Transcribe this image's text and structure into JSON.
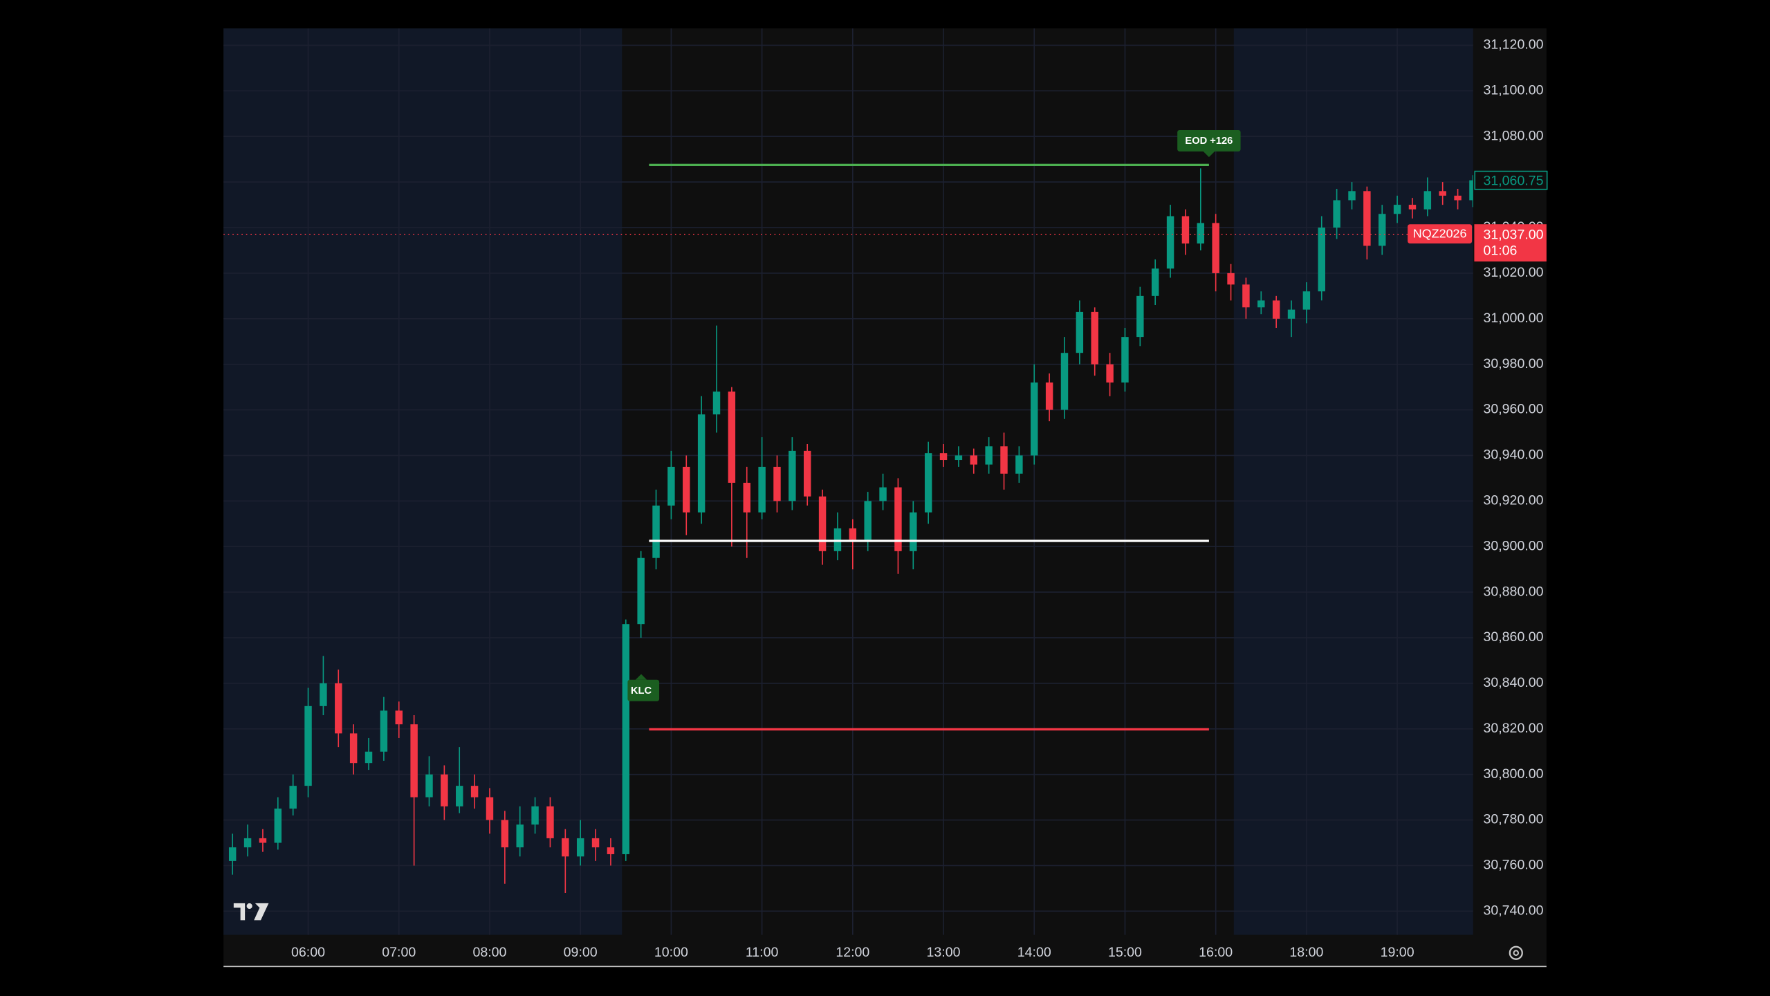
{
  "chart_data": {
    "type": "candlestick",
    "x": [
      "05:10",
      "05:20",
      "05:30",
      "05:40",
      "05:50",
      "06:00",
      "06:10",
      "06:20",
      "06:30",
      "06:40",
      "06:50",
      "07:00",
      "07:10",
      "07:20",
      "07:30",
      "07:40",
      "07:50",
      "08:00",
      "08:10",
      "08:20",
      "08:30",
      "08:40",
      "08:50",
      "09:00",
      "09:10",
      "09:20",
      "09:30",
      "09:40",
      "09:50",
      "10:00",
      "10:10",
      "10:20",
      "10:30",
      "10:40",
      "10:50",
      "11:00",
      "11:10",
      "11:20",
      "11:30",
      "11:40",
      "11:50",
      "12:00",
      "12:10",
      "12:20",
      "12:30",
      "12:40",
      "12:50",
      "13:00",
      "13:10",
      "13:20",
      "13:30",
      "13:40",
      "13:50",
      "14:00",
      "14:10",
      "14:20",
      "14:30",
      "14:40",
      "14:50",
      "15:00",
      "15:10",
      "15:20",
      "15:30",
      "15:40",
      "15:50",
      "16:00",
      "16:10",
      "16:20",
      "16:30",
      "16:40",
      "16:50",
      "18:00",
      "18:10",
      "18:20",
      "18:30",
      "18:40",
      "18:50",
      "19:00",
      "19:10",
      "19:20",
      "19:30",
      "19:40",
      "19:50"
    ],
    "open": [
      30762,
      30768,
      30772,
      30770,
      30785,
      30795,
      30830,
      30840,
      30818,
      30805,
      30810,
      30828,
      30822,
      30790,
      30800,
      30786,
      30795,
      30790,
      30780,
      30768,
      30778,
      30786,
      30772,
      30764,
      30772,
      30768,
      30765,
      30866,
      30895,
      30918,
      30935,
      30915,
      30958,
      30968,
      30928,
      30915,
      30935,
      30920,
      30942,
      30922,
      30898,
      30908,
      30903,
      30920,
      30926,
      30898,
      30915,
      30941,
      30938,
      30940,
      30936,
      30944,
      30932,
      30940,
      30972,
      30960,
      30985,
      31003,
      30980,
      30972,
      30992,
      31010,
      31022,
      31045,
      31033,
      31042,
      31020,
      31015,
      31005,
      31008,
      31000,
      31004,
      31012,
      31040,
      31052,
      31056,
      31032,
      31046,
      31050,
      31048,
      31056,
      31054,
      31052
    ],
    "high": [
      30774,
      30778,
      30776,
      30790,
      30800,
      30838,
      30852,
      30846,
      30822,
      30816,
      30834,
      30832,
      30826,
      30808,
      30804,
      30812,
      30800,
      30794,
      30784,
      30786,
      30790,
      30790,
      30776,
      30780,
      30776,
      30772,
      30868,
      30898,
      30925,
      30942,
      30940,
      30966,
      30997,
      30970,
      30935,
      30948,
      30940,
      30948,
      30945,
      30925,
      30915,
      30912,
      30924,
      30932,
      30930,
      30920,
      30946,
      30945,
      30944,
      30943,
      30948,
      30950,
      30944,
      30980,
      30976,
      30992,
      31008,
      31005,
      30985,
      30996,
      31014,
      31026,
      31050,
      31048,
      31066,
      31046,
      31024,
      31018,
      31012,
      31010,
      31008,
      31016,
      31045,
      31057,
      31060,
      31058,
      31050,
      31054,
      31053,
      31062,
      31060,
      31057,
      31063
    ],
    "low": [
      30756,
      30764,
      30766,
      30767,
      30782,
      30790,
      30826,
      30812,
      30800,
      30802,
      30806,
      30816,
      30760,
      30786,
      30780,
      30783,
      30785,
      30774,
      30752,
      30764,
      30774,
      30768,
      30748,
      30760,
      30762,
      30760,
      30762,
      30860,
      30890,
      30912,
      30905,
      30910,
      30950,
      30900,
      30895,
      30912,
      30915,
      30916,
      30918,
      30892,
      30894,
      30890,
      30898,
      30916,
      30888,
      30890,
      30910,
      30935,
      30935,
      30932,
      30932,
      30925,
      30928,
      30936,
      30955,
      30956,
      30980,
      30975,
      30966,
      30968,
      30988,
      31006,
      31018,
      31028,
      31030,
      31012,
      31008,
      31000,
      31002,
      30996,
      30992,
      30998,
      31008,
      31035,
      31048,
      31026,
      31028,
      31042,
      31044,
      31045,
      31050,
      31048,
      31049
    ],
    "close": [
      30768,
      30772,
      30770,
      30785,
      30795,
      30830,
      30840,
      30818,
      30805,
      30810,
      30828,
      30822,
      30790,
      30800,
      30786,
      30795,
      30790,
      30780,
      30768,
      30778,
      30786,
      30772,
      30764,
      30772,
      30768,
      30765,
      30866,
      30895,
      30918,
      30935,
      30915,
      30958,
      30968,
      30928,
      30915,
      30935,
      30920,
      30942,
      30922,
      30898,
      30908,
      30903,
      30920,
      30926,
      30898,
      30915,
      30941,
      30938,
      30940,
      30936,
      30944,
      30932,
      30940,
      30972,
      30960,
      30985,
      31003,
      30980,
      30972,
      30992,
      31010,
      31022,
      31045,
      31033,
      31042,
      31020,
      31015,
      31005,
      31008,
      31000,
      31004,
      31012,
      31040,
      31052,
      31056,
      31032,
      31046,
      31050,
      31048,
      31056,
      31054,
      31052,
      31060.75
    ],
    "up_color": "#089981",
    "down_color": "#f23645",
    "ylim": [
      30729.6,
      31127.4
    ],
    "yticks": [
      {
        "value": 31120,
        "label": "31,120.00"
      },
      {
        "value": 31100,
        "label": "31,100.00"
      },
      {
        "value": 31080,
        "label": "31,080.00"
      },
      {
        "value": 31060,
        "label": "31,060.00"
      },
      {
        "value": 31040,
        "label": "31,040.00"
      },
      {
        "value": 31020,
        "label": "31,020.00"
      },
      {
        "value": 31000,
        "label": "31,000.00"
      },
      {
        "value": 30980,
        "label": "30,980.00"
      },
      {
        "value": 30960,
        "label": "30,960.00"
      },
      {
        "value": 30940,
        "label": "30,940.00"
      },
      {
        "value": 30920,
        "label": "30,920.00"
      },
      {
        "value": 30900,
        "label": "30,900.00"
      },
      {
        "value": 30880,
        "label": "30,880.00"
      },
      {
        "value": 30860,
        "label": "30,860.00"
      },
      {
        "value": 30840,
        "label": "30,840.00"
      },
      {
        "value": 30820,
        "label": "30,820.00"
      },
      {
        "value": 30800,
        "label": "30,800.00"
      },
      {
        "value": 30780,
        "label": "30,780.00"
      },
      {
        "value": 30760,
        "label": "30,760.00"
      },
      {
        "value": 30740,
        "label": "30,740.00"
      }
    ],
    "xticks": [
      "06:00",
      "07:00",
      "08:00",
      "09:00",
      "10:00",
      "11:00",
      "12:00",
      "13:00",
      "14:00",
      "15:00",
      "16:00",
      "18:00",
      "19:00"
    ],
    "grid": true,
    "levels": [
      {
        "value": 31067.5,
        "color": "#4caf50"
      },
      {
        "value": 30902.5,
        "color": "#ffffff"
      },
      {
        "value": 30819.8,
        "color": "#f23645"
      }
    ],
    "annotations": [
      "EOD +126",
      "KLC"
    ],
    "last_price": {
      "value": 31060.75,
      "label": "31,060.75",
      "color": "#089981"
    },
    "symbol_marker": {
      "symbol": "NQZ2026",
      "value": 31037,
      "label": "31,037.00",
      "countdown": "01:06",
      "color": "#f23645"
    }
  }
}
